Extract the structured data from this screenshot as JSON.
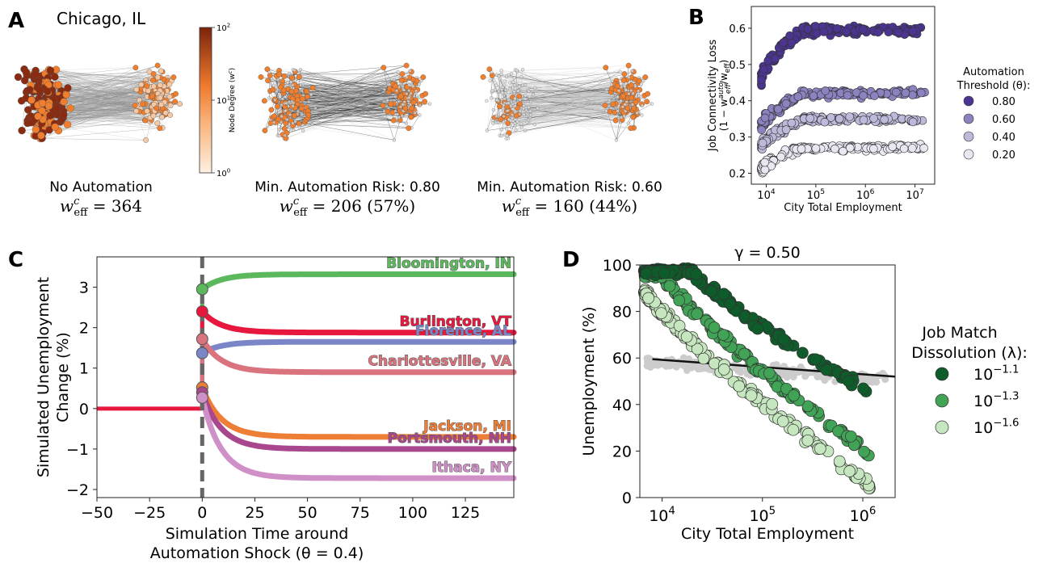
{
  "panel_letters": {
    "a": "A",
    "b": "B",
    "c": "C",
    "d": "D"
  },
  "panel_a": {
    "city": "Chicago, IL",
    "colorbar_label": "Node Degree (w",
    "colorbar_label_sup": "c",
    "colorbar_label_end": ")",
    "colorbar_ticks": [
      {
        "base": "10",
        "exp": "2"
      },
      {
        "base": "10",
        "exp": "1"
      },
      {
        "base": "10",
        "exp": "0"
      }
    ],
    "networks": [
      {
        "caption": "No Automation",
        "w_text": "= 364",
        "pct": ""
      },
      {
        "caption": "Min. Automation Risk: 0.80",
        "w_text": "= 206 (57%)",
        "pct": ""
      },
      {
        "caption": "Min. Automation Risk: 0.60",
        "w_text": "= 160 (44%)",
        "pct": ""
      }
    ],
    "w_symbol": "w",
    "w_sup": "c",
    "w_sub": "eff",
    "colors": {
      "node_dark": "#8b2a0e",
      "node_orange": "#f07e2c",
      "node_light": "#f6c9a4",
      "edge_gray": "#c9c9c9",
      "edge_dark": "#333333"
    }
  },
  "chart_data": [
    {
      "id": "B",
      "type": "scatter",
      "xlabel": "City Total Employment",
      "ylabel": "Job Connectivity Loss",
      "ylabel2": "(1 − w",
      "ylabel2_sup": "auto",
      "ylabel2_sub": "eff",
      "ylabel2_end": "/w",
      "ylabel2_end_sub": "eff",
      "ylabel2_close": ")",
      "xscale": "log",
      "xlim": [
        5000,
        25000000
      ],
      "ylim": [
        0.17,
        0.66
      ],
      "xticks": [
        {
          "base": "10",
          "exp": "4"
        },
        {
          "base": "10",
          "exp": "5"
        },
        {
          "base": "10",
          "exp": "6"
        },
        {
          "base": "10",
          "exp": "7"
        }
      ],
      "yticks": [
        "0.2",
        "0.3",
        "0.4",
        "0.5",
        "0.6"
      ],
      "legend_title": "Automation",
      "legend_title2": "Threshold (θ):",
      "series": [
        {
          "name": "0.80",
          "color": "#4b3591",
          "center": 0.595,
          "start": 0.42,
          "spread": 0.03
        },
        {
          "name": "0.60",
          "color": "#8b82c0",
          "center": 0.42,
          "start": 0.3,
          "spread": 0.025
        },
        {
          "name": "0.40",
          "color": "#bdb9da",
          "center": 0.35,
          "start": 0.25,
          "spread": 0.022
        },
        {
          "name": "0.20",
          "color": "#e9e7f2",
          "center": 0.27,
          "start": 0.19,
          "spread": 0.02
        }
      ]
    },
    {
      "id": "C",
      "type": "line",
      "xlabel": "Simulation Time around",
      "xlabel2": "Automation Shock (θ = 0.4)",
      "ylabel": "Simulated Unemployment",
      "ylabel2": "Change (%)",
      "xlim": [
        -50,
        148
      ],
      "ylim": [
        -2.2,
        3.75
      ],
      "xticks": [
        "−50",
        "−25",
        "0",
        "25",
        "50",
        "75",
        "100",
        "125"
      ],
      "xtick_values": [
        -50,
        -25,
        0,
        25,
        50,
        75,
        100,
        125
      ],
      "yticks": [
        "−2",
        "−1",
        "0",
        "1",
        "2",
        "3"
      ],
      "ytick_values": [
        -2,
        -1,
        0,
        1,
        2,
        3
      ],
      "shock_time": 0,
      "series": [
        {
          "name": "Bloomington, IN",
          "color": "#5cb85c",
          "start": 2.95,
          "end": 3.32
        },
        {
          "name": "Burlington, VT",
          "color": "#e8173d",
          "start": 2.4,
          "end": 1.88
        },
        {
          "name": "Florence, AL",
          "color": "#7b86c8",
          "start": 1.37,
          "end": 1.65
        },
        {
          "name": "Charlottesville, VA",
          "color": "#d9737d",
          "start": 1.72,
          "end": 0.9
        },
        {
          "name": "Jackson, MI",
          "color": "#ee7d35",
          "start": 0.52,
          "end": -0.7
        },
        {
          "name": "Portsmouth, NH",
          "color": "#a8478e",
          "start": 0.4,
          "end": -1.0
        },
        {
          "name": "Ithaca, NY",
          "color": "#cf8fc7",
          "start": 0.27,
          "end": -1.72
        }
      ]
    },
    {
      "id": "D",
      "type": "scatter",
      "title": "γ = 0.50",
      "xlabel": "City Total Employment",
      "ylabel": "Unemployment (%)",
      "xscale": "log",
      "xlim": [
        6000,
        2100000
      ],
      "ylim": [
        0,
        100
      ],
      "xticks": [
        {
          "base": "10",
          "exp": "4"
        },
        {
          "base": "10",
          "exp": "5"
        },
        {
          "base": "10",
          "exp": "6"
        }
      ],
      "yticks": [
        "0",
        "20",
        "40",
        "60",
        "80",
        "100"
      ],
      "ytick_values": [
        0,
        20,
        40,
        60,
        80,
        100
      ],
      "trend_line": {
        "x": [
          8000,
          2100000
        ],
        "y": [
          59.5,
          52
        ]
      },
      "legend_title": "Job Match",
      "legend_title2": "Dissolution (λ):",
      "series": [
        {
          "name_base": "10",
          "name_exp": "−1.1",
          "color": "#0e5c2a",
          "y_low": 97,
          "y_high_x": 20000,
          "y_end": 46
        },
        {
          "name_base": "10",
          "name_exp": "−1.3",
          "color": "#41a355",
          "y_low": 96,
          "y_high_x": 10000,
          "y_end": 19
        },
        {
          "name_base": "10",
          "name_exp": "−1.6",
          "color": "#c6e6bf",
          "y_low": 88,
          "y_high_x": 7000,
          "y_end": 6
        }
      ],
      "gray_color": "#cccccc"
    }
  ]
}
